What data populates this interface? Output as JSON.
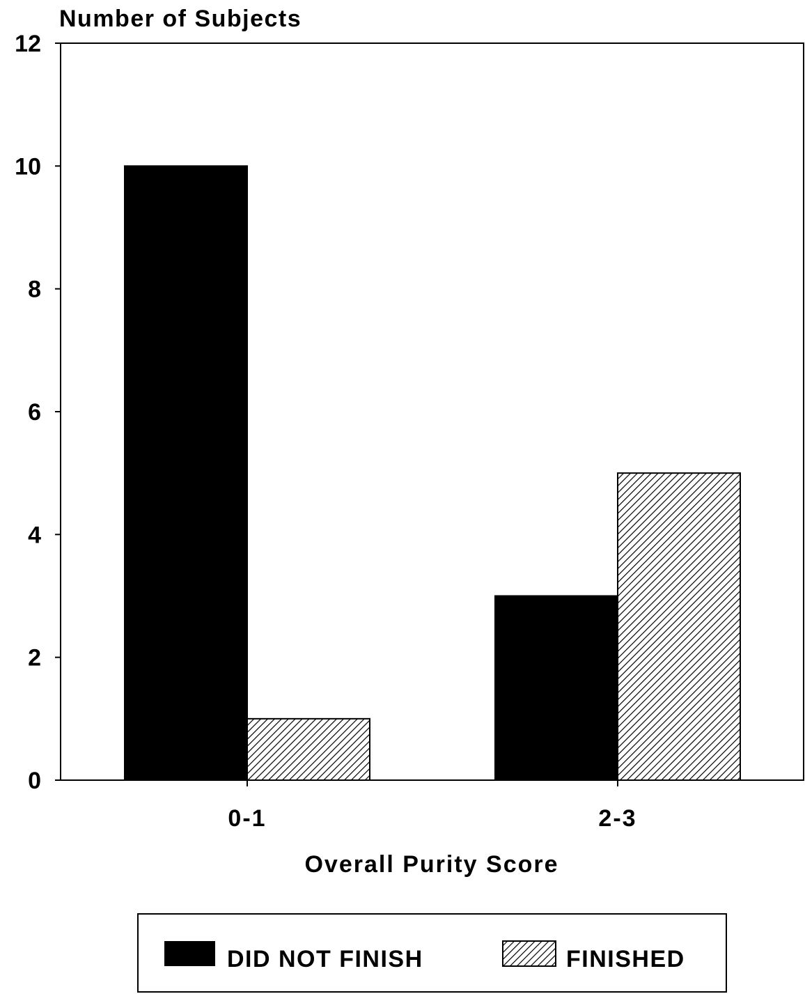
{
  "chart_data": {
    "type": "bar",
    "ylabel": "Number of Subjects",
    "xlabel": "Overall Purity Score",
    "categories": [
      "0-1",
      "2-3"
    ],
    "ylim": [
      0,
      12
    ],
    "yticks": [
      0,
      2,
      4,
      6,
      8,
      10,
      12
    ],
    "grid": false,
    "legend_position": "bottom",
    "series": [
      {
        "name": "DID NOT FINISH",
        "values": [
          10,
          3
        ],
        "color": "#000000",
        "pattern": "solid"
      },
      {
        "name": "FINISHED",
        "values": [
          1,
          5
        ],
        "color": "#000000",
        "pattern": "diagonal-hatch"
      }
    ]
  }
}
